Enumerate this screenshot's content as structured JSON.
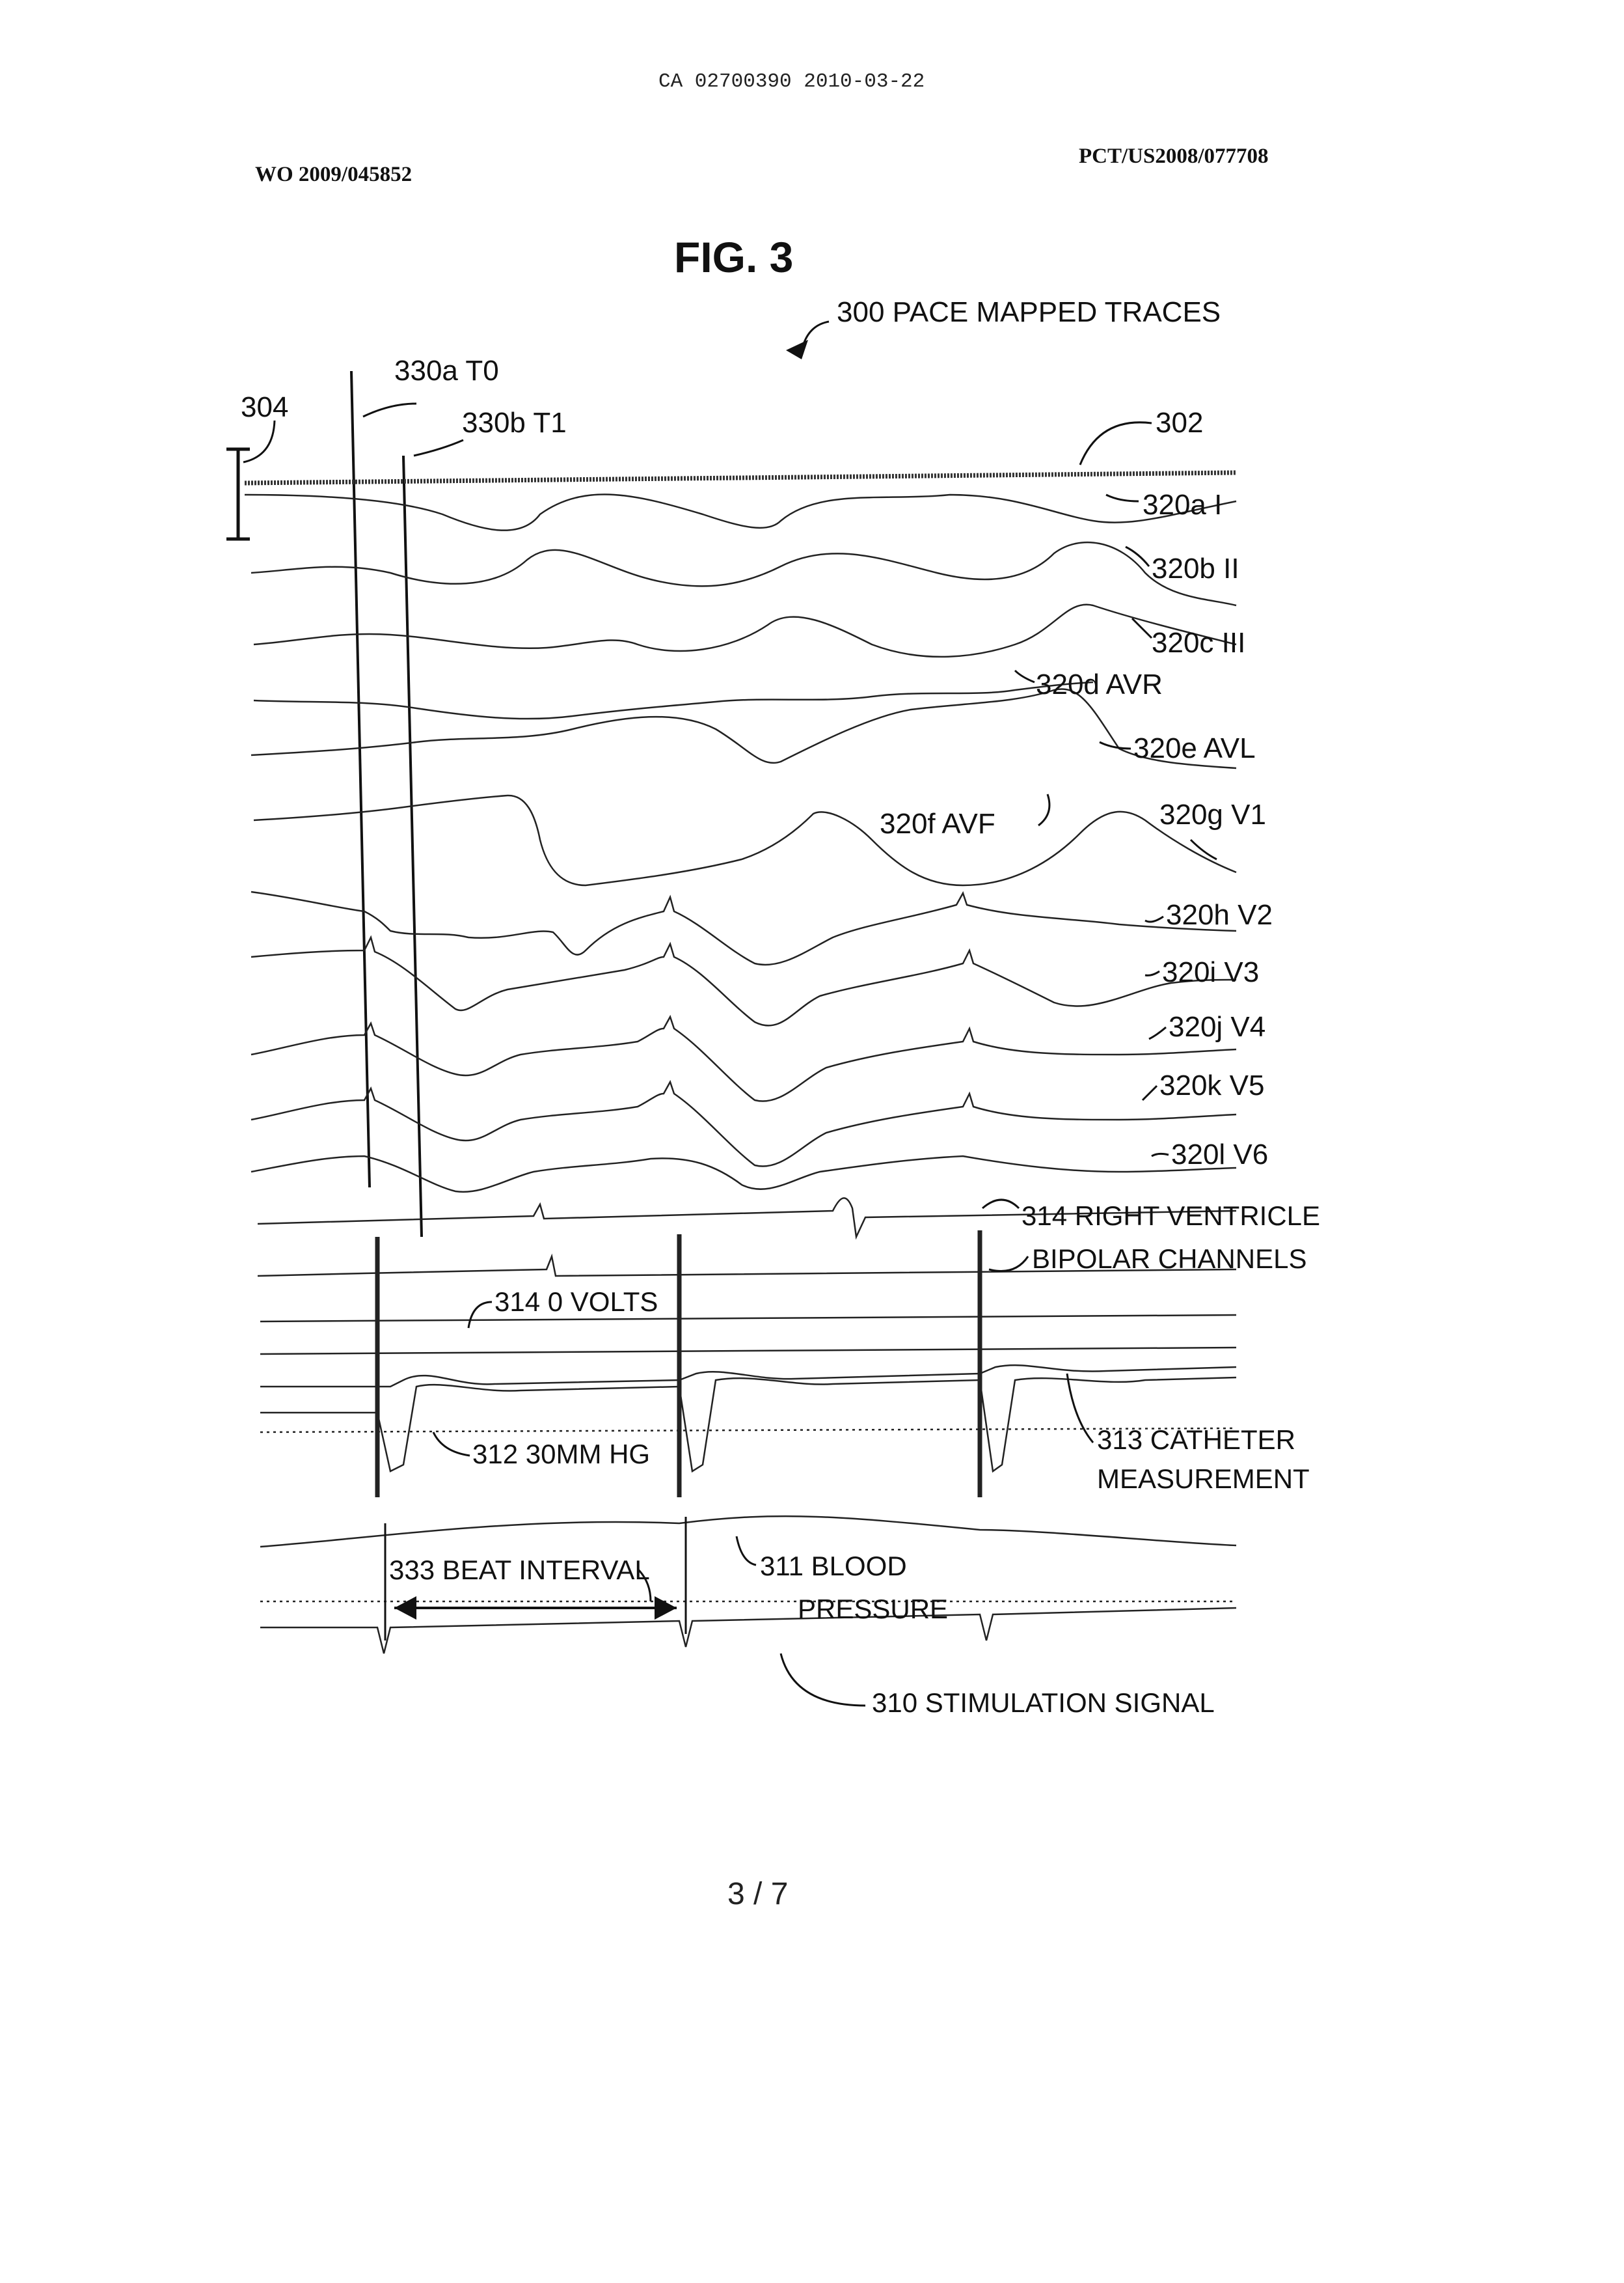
{
  "header": {
    "doc_id": "CA 02700390 2010-03-22",
    "pub_left": "WO 2009/045852",
    "pub_right": "PCT/US2008/077708"
  },
  "figure": {
    "title": "FIG. 3",
    "main_label": "300 PACE MAPPED TRACES",
    "marker_label": "304",
    "baseline_label": "302",
    "time_labels": {
      "t0": "330a T0",
      "t1": "330b T1"
    },
    "lead_labels": {
      "i": "320a I",
      "ii": "320b II",
      "iii": "320c III",
      "avr": "320d AVR",
      "avl": "320e AVL",
      "avf": "320f AVF",
      "v1": "320g V1",
      "v2": "320h V2",
      "v3": "320i V3",
      "v4": "320j V4",
      "v5": "320k V5",
      "v6": "320l V6"
    },
    "channel_labels": {
      "rv_line1": "314 RIGHT VENTRICLE",
      "rv_line2": "BIPOLAR CHANNELS",
      "zero_volts": "314 0 VOLTS",
      "mmhg": "312 30MM HG",
      "catheter_line1": "313 CATHETER",
      "catheter_line2": "MEASUREMENT",
      "beat_interval": "333 BEAT INTERVAL",
      "bp_line1": "311 BLOOD",
      "bp_line2": "PRESSURE",
      "stim": "310 STIMULATION SIGNAL"
    }
  },
  "page_number": "3 / 7"
}
